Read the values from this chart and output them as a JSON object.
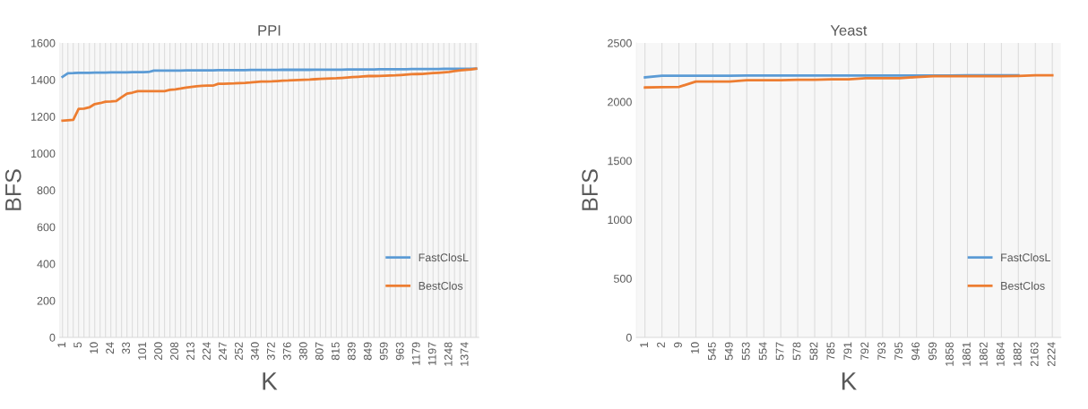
{
  "chart_data": [
    {
      "type": "line",
      "title": "PPI",
      "xlabel": "K",
      "ylabel": "BFS",
      "categories": [
        "1",
        null,
        null,
        "5",
        null,
        null,
        "10",
        null,
        null,
        "24",
        null,
        null,
        "33",
        null,
        null,
        "101",
        null,
        null,
        "200",
        null,
        null,
        "208",
        null,
        null,
        "213",
        null,
        null,
        "224",
        null,
        null,
        "247",
        null,
        null,
        "252",
        null,
        null,
        "340",
        null,
        null,
        "372",
        null,
        null,
        "376",
        null,
        null,
        "380",
        null,
        null,
        "807",
        null,
        null,
        "815",
        null,
        null,
        "839",
        null,
        null,
        "849",
        null,
        null,
        "959",
        null,
        null,
        "963",
        null,
        null,
        "1179",
        null,
        null,
        "1197",
        null,
        null,
        "1248",
        null,
        null,
        "1374",
        null,
        null
      ],
      "series": [
        {
          "name": "FastClosL",
          "color": "#5b9bd5",
          "values": [
            1416,
            1435,
            1436,
            1438,
            1438,
            1438,
            1439,
            1439,
            1439,
            1440,
            1440,
            1440,
            1440,
            1441,
            1441,
            1441,
            1442,
            1450,
            1450,
            1450,
            1450,
            1450,
            1450,
            1451,
            1451,
            1451,
            1451,
            1451,
            1451,
            1452,
            1452,
            1452,
            1452,
            1452,
            1452,
            1453,
            1453,
            1453,
            1453,
            1453,
            1453,
            1454,
            1454,
            1454,
            1454,
            1454,
            1454,
            1455,
            1455,
            1455,
            1455,
            1455,
            1455,
            1456,
            1456,
            1456,
            1456,
            1456,
            1456,
            1457,
            1457,
            1457,
            1457,
            1457,
            1457,
            1458,
            1458,
            1458,
            1458,
            1458,
            1458,
            1459,
            1459,
            1459,
            1459,
            1459,
            1459,
            1460
          ]
        },
        {
          "name": "BestClos",
          "color": "#ed7d31",
          "values": [
            1178,
            1180,
            1182,
            1242,
            1243,
            1250,
            1268,
            1273,
            1281,
            1282,
            1284,
            1305,
            1325,
            1330,
            1338,
            1338,
            1338,
            1338,
            1338,
            1338,
            1345,
            1348,
            1352,
            1357,
            1361,
            1365,
            1367,
            1368,
            1368,
            1378,
            1378,
            1379,
            1380,
            1382,
            1383,
            1385,
            1388,
            1390,
            1390,
            1391,
            1393,
            1395,
            1396,
            1398,
            1399,
            1400,
            1401,
            1403,
            1405,
            1406,
            1407,
            1408,
            1410,
            1412,
            1414,
            1416,
            1418,
            1420,
            1420,
            1421,
            1422,
            1423,
            1424,
            1426,
            1428,
            1430,
            1431,
            1432,
            1434,
            1436,
            1438,
            1440,
            1442,
            1447,
            1451,
            1454,
            1456,
            1460
          ]
        }
      ],
      "ylim": [
        0,
        1600
      ],
      "yticks": [
        0,
        200,
        400,
        600,
        800,
        1000,
        1200,
        1400,
        1600
      ],
      "grid": "x",
      "legend": "bottom right",
      "marker": "none",
      "line_style": "solid"
    },
    {
      "type": "line",
      "title": "Yeast",
      "xlabel": "K",
      "ylabel": "BFS",
      "categories": [
        "1",
        "2",
        "9",
        "10",
        "545",
        "549",
        "553",
        "554",
        "577",
        "578",
        "582",
        "785",
        "791",
        "792",
        "793",
        "795",
        "946",
        "959",
        "1858",
        "1861",
        "1862",
        "1864",
        "1882",
        "2163",
        "2224"
      ],
      "series": [
        {
          "name": "FastClosL",
          "color": "#5b9bd5",
          "values": [
            2208,
            2222,
            2222,
            2222,
            2222,
            2222,
            2223,
            2223,
            2223,
            2223,
            2223,
            2223,
            2223,
            2224,
            2224,
            2224,
            2224,
            2224,
            2224,
            2225,
            2225,
            2225,
            2225,
            null,
            null
          ]
        },
        {
          "name": "BestClos",
          "color": "#ed7d31",
          "values": [
            2122,
            2125,
            2127,
            2172,
            2172,
            2172,
            2183,
            2183,
            2183,
            2187,
            2187,
            2192,
            2192,
            2200,
            2200,
            2200,
            2210,
            2218,
            2218,
            2218,
            2218,
            2218,
            2220,
            2225,
            2225
          ]
        }
      ],
      "ylim": [
        0,
        2500
      ],
      "yticks": [
        0,
        500,
        1000,
        1500,
        2000,
        2500
      ],
      "grid": "x",
      "legend": "bottom right",
      "marker": "none",
      "line_style": "solid"
    }
  ]
}
